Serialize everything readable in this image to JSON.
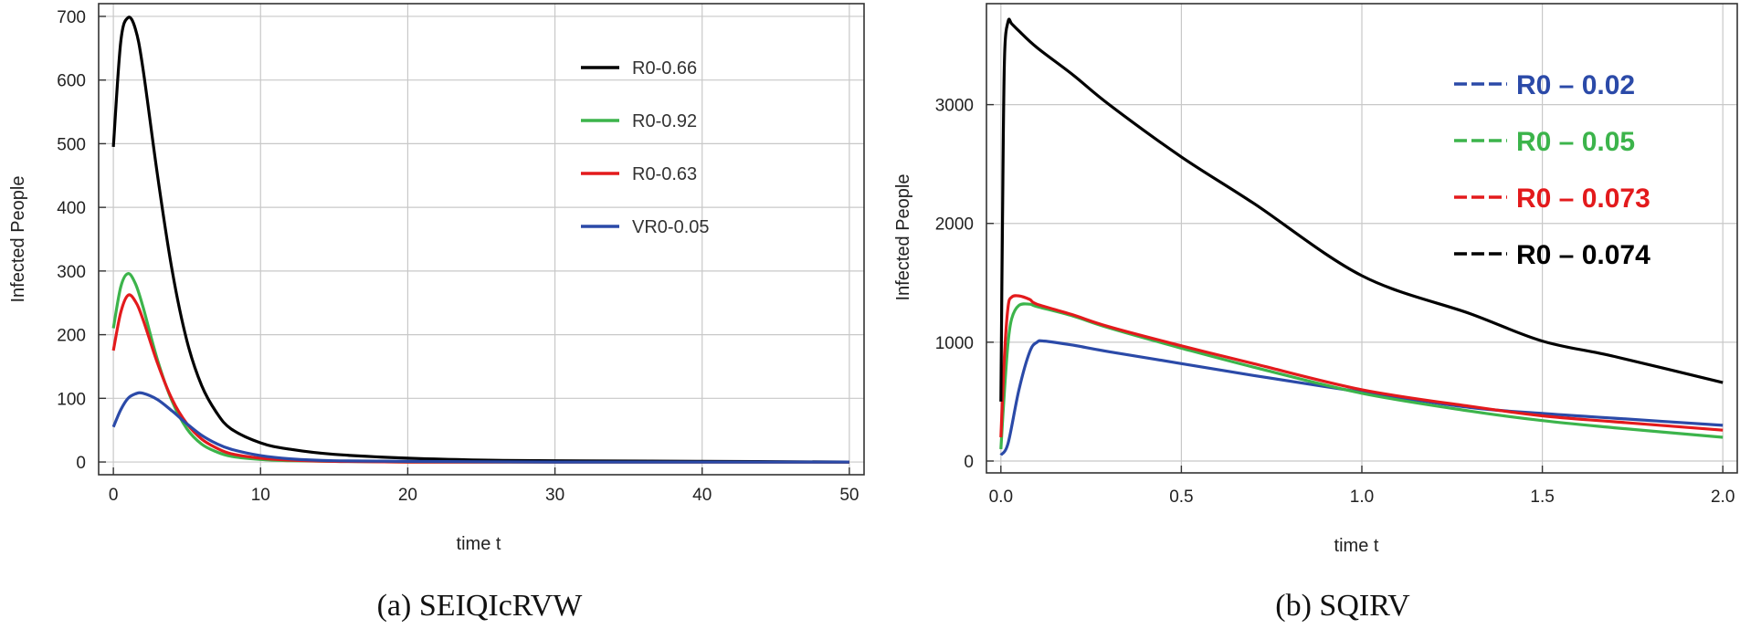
{
  "chart_data": [
    {
      "type": "line",
      "panel": "a",
      "caption": "(a)  SEIQIcRVW",
      "xlabel": "time t",
      "ylabel": "Infected People",
      "xlim": [
        -1,
        51
      ],
      "ylim": [
        -20,
        720
      ],
      "xticks": [
        0,
        10,
        20,
        30,
        40,
        50
      ],
      "yticks": [
        0,
        100,
        200,
        300,
        400,
        500,
        600,
        700
      ],
      "grid": true,
      "legend_position": "top-right",
      "series": [
        {
          "name": "R0-0.66",
          "color": "#000000",
          "dashed": false,
          "x": [
            0,
            0.5,
            1,
            1.5,
            2,
            3,
            4,
            5,
            6,
            7,
            8,
            10,
            12,
            15,
            20,
            25,
            30,
            40,
            50
          ],
          "y": [
            495,
            660,
            698,
            680,
            620,
            450,
            300,
            190,
            120,
            78,
            52,
            30,
            20,
            12,
            6,
            3,
            2,
            1,
            0
          ]
        },
        {
          "name": "R0-0.92",
          "color": "#3cb44b",
          "dashed": false,
          "x": [
            0,
            0.5,
            1,
            1.5,
            2,
            3,
            4,
            5,
            6,
            7,
            8,
            10,
            12,
            15,
            20,
            30,
            50
          ],
          "y": [
            210,
            275,
            296,
            280,
            245,
            160,
            95,
            52,
            28,
            16,
            9,
            4,
            2,
            1,
            0,
            0,
            0
          ]
        },
        {
          "name": "R0-0.63",
          "color": "#e31a1c",
          "dashed": false,
          "x": [
            0,
            0.5,
            1,
            1.5,
            2,
            3,
            4,
            5,
            6,
            7,
            8,
            10,
            12,
            15,
            20,
            30,
            50
          ],
          "y": [
            175,
            235,
            262,
            252,
            225,
            155,
            98,
            60,
            36,
            22,
            13,
            6,
            3,
            1,
            0,
            0,
            0
          ]
        },
        {
          "name": "VR0-0.05",
          "color": "#2b4aa8",
          "dashed": false,
          "x": [
            0,
            0.5,
            1,
            1.5,
            2,
            3,
            4,
            5,
            6,
            7,
            8,
            10,
            12,
            15,
            20,
            30,
            50
          ],
          "y": [
            55,
            82,
            100,
            107,
            108,
            98,
            80,
            60,
            42,
            29,
            20,
            10,
            5,
            2,
            1,
            0,
            0
          ]
        }
      ]
    },
    {
      "type": "line",
      "panel": "b",
      "caption": "(b)  SQIRV",
      "xlabel": "time t",
      "ylabel": "Infected People",
      "xlim": [
        -0.04,
        2.04
      ],
      "ylim": [
        -100,
        3850
      ],
      "xticks": [
        "0.0",
        "0.5",
        "1.0",
        "1.5",
        "2.0"
      ],
      "yticks": [
        0,
        1000,
        2000,
        3000
      ],
      "grid": true,
      "legend_position": "top-right",
      "series": [
        {
          "name": "R0 – 0.02",
          "color": "#2b4aa8",
          "dashed": true,
          "x": [
            0,
            0.02,
            0.05,
            0.08,
            0.1,
            0.12,
            0.2,
            0.3,
            0.5,
            0.7,
            1.0,
            1.3,
            1.5,
            1.7,
            2.0
          ],
          "y": [
            50,
            150,
            600,
            920,
            1000,
            1010,
            975,
            920,
            820,
            720,
            580,
            450,
            400,
            360,
            300
          ]
        },
        {
          "name": "R0 – 0.05",
          "color": "#3cb44b",
          "dashed": true,
          "x": [
            0,
            0.01,
            0.02,
            0.03,
            0.05,
            0.08,
            0.1,
            0.2,
            0.3,
            0.5,
            0.7,
            1.0,
            1.3,
            1.5,
            1.7,
            2.0
          ],
          "y": [
            100,
            600,
            1000,
            1200,
            1310,
            1320,
            1300,
            1220,
            1120,
            950,
            790,
            570,
            420,
            340,
            280,
            200
          ]
        },
        {
          "name": "R0 – 0.073",
          "color": "#e31a1c",
          "dashed": true,
          "x": [
            0,
            0.01,
            0.02,
            0.03,
            0.05,
            0.08,
            0.1,
            0.2,
            0.3,
            0.5,
            0.7,
            1.0,
            1.3,
            1.5,
            1.7,
            2.0
          ],
          "y": [
            200,
            900,
            1300,
            1380,
            1390,
            1360,
            1320,
            1230,
            1130,
            970,
            820,
            600,
            460,
            380,
            330,
            260
          ]
        },
        {
          "name": "R0 – 0.074",
          "color": "#000000",
          "dashed": true,
          "x": [
            0,
            0.005,
            0.01,
            0.02,
            0.03,
            0.05,
            0.1,
            0.2,
            0.3,
            0.5,
            0.7,
            1.0,
            1.3,
            1.5,
            1.7,
            2.0
          ],
          "y": [
            500,
            2200,
            3400,
            3700,
            3680,
            3620,
            3480,
            3250,
            3000,
            2560,
            2170,
            1560,
            1240,
            1010,
            880,
            660
          ]
        }
      ]
    }
  ]
}
